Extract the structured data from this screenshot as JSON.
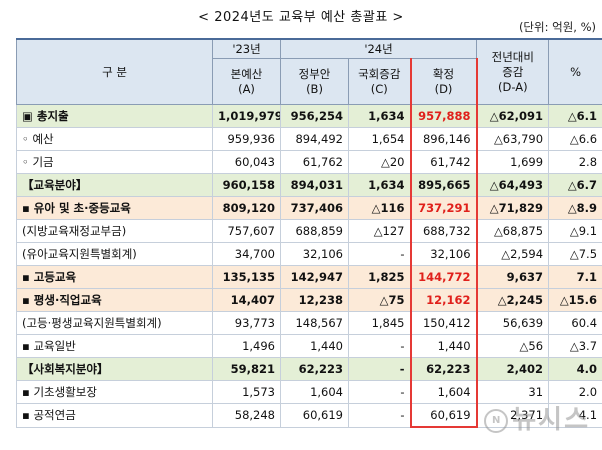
{
  "title": "< 2024년도 교육부 예산 총괄표 >",
  "unit": "(단위: 억원, %)",
  "header": {
    "gubun": "구       분",
    "year23": "'23년",
    "year24": "'24년",
    "colA": "본예산\n(A)",
    "colB": "정부안\n(B)",
    "colC": "국회증감\n(C)",
    "colD": "확정\n(D)",
    "colDiff": "전년대비\n증감\n(D-A)",
    "colPct": "%"
  },
  "rows": [
    {
      "label": "▣ 총지출",
      "a": "1,019,979",
      "b": "956,254",
      "c": "1,634",
      "d": "957,888",
      "diff": "△62,091",
      "pct": "△6.1",
      "style": "green",
      "dred": true
    },
    {
      "label": "◦ 예산",
      "a": "959,936",
      "b": "894,492",
      "c": "1,654",
      "d": "896,146",
      "diff": "△63,790",
      "pct": "△6.6",
      "style": "plain",
      "dred": false
    },
    {
      "label": "◦ 기금",
      "a": "60,043",
      "b": "61,762",
      "c": "△20",
      "d": "61,742",
      "diff": "1,699",
      "pct": "2.8",
      "style": "plain",
      "dred": false
    },
    {
      "label": "【교육분야】",
      "a": "960,158",
      "b": "894,031",
      "c": "1,634",
      "d": "895,665",
      "diff": "△64,493",
      "pct": "△6.7",
      "style": "green",
      "dred": false
    },
    {
      "label": "▪ 유아 및 초·중등교육",
      "a": "809,120",
      "b": "737,406",
      "c": "△116",
      "d": "737,291",
      "diff": "△71,829",
      "pct": "△8.9",
      "style": "orange",
      "dred": true
    },
    {
      "label": "(지방교육재정교부금)",
      "a": "757,607",
      "b": "688,859",
      "c": "△127",
      "d": "688,732",
      "diff": "△68,875",
      "pct": "△9.1",
      "style": "plain",
      "dred": false
    },
    {
      "label": "(유아교육지원특별회계)",
      "a": "34,700",
      "b": "32,106",
      "c": "-",
      "d": "32,106",
      "diff": "△2,594",
      "pct": "△7.5",
      "style": "plain",
      "dred": false
    },
    {
      "label": "▪ 고등교육",
      "a": "135,135",
      "b": "142,947",
      "c": "1,825",
      "d": "144,772",
      "diff": "9,637",
      "pct": "7.1",
      "style": "orange",
      "dred": true
    },
    {
      "label": "▪ 평생·직업교육",
      "a": "14,407",
      "b": "12,238",
      "c": "△75",
      "d": "12,162",
      "diff": "△2,245",
      "pct": "△15.6",
      "style": "orange",
      "dred": true
    },
    {
      "label": "(고등·평생교육지원특별회계)",
      "a": "93,773",
      "b": "148,567",
      "c": "1,845",
      "d": "150,412",
      "diff": "56,639",
      "pct": "60.4",
      "style": "plain",
      "dred": false
    },
    {
      "label": "▪ 교육일반",
      "a": "1,496",
      "b": "1,440",
      "c": "-",
      "d": "1,440",
      "diff": "△56",
      "pct": "△3.7",
      "style": "plain",
      "dred": false
    },
    {
      "label": "【사회복지분야】",
      "a": "59,821",
      "b": "62,223",
      "c": "-",
      "d": "62,223",
      "diff": "2,402",
      "pct": "4.0",
      "style": "green",
      "dred": false
    },
    {
      "label": "▪ 기초생활보장",
      "a": "1,573",
      "b": "1,604",
      "c": "-",
      "d": "1,604",
      "diff": "31",
      "pct": "2.0",
      "style": "plain",
      "dred": false
    },
    {
      "label": "▪ 공적연금",
      "a": "58,248",
      "b": "60,619",
      "c": "-",
      "d": "60,619",
      "diff": "2,371",
      "pct": "4.1",
      "style": "plain",
      "dred": false
    }
  ],
  "watermark": {
    "badge": "N",
    "text": "뉴시스"
  }
}
